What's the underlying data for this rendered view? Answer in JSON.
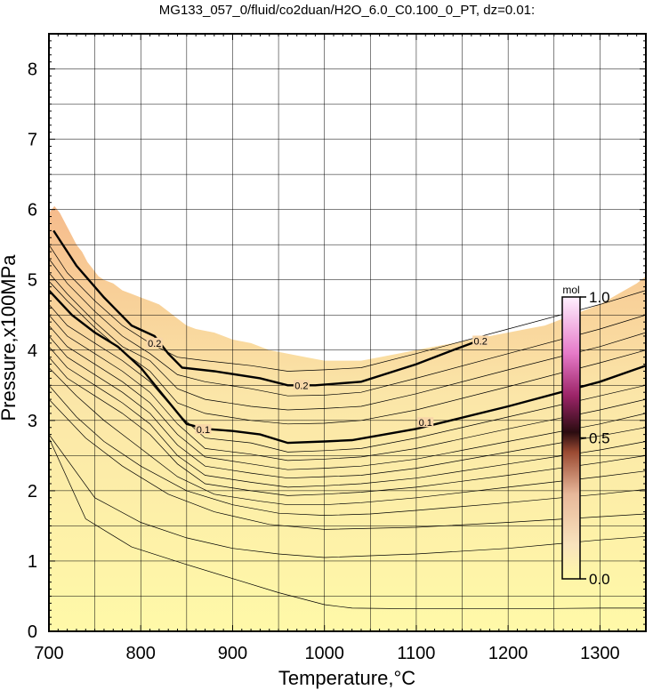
{
  "chart_data": {
    "type": "contour",
    "title": "MG133_057_0/fluid/co2duan/H2O_6.0_C0.100_0_PT, dz=0.01:",
    "xlabel": "Temperature,°C",
    "ylabel": "Pressure,x100MPa",
    "xlim": [
      700,
      1350
    ],
    "ylim": [
      0,
      8.5
    ],
    "xticks": [
      "700",
      "800",
      "900",
      "1000",
      "1100",
      "1200",
      "1300"
    ],
    "yticks": [
      "0",
      "1",
      "2",
      "3",
      "4",
      "5",
      "6",
      "7",
      "8"
    ],
    "grid": true,
    "colorbar": {
      "label": "mol",
      "ticks": [
        "0.0",
        "0.5",
        "1.0"
      ],
      "range": [
        0.0,
        1.0
      ],
      "colors": [
        "#fff9a8",
        "#f6d6a3",
        "#efb48e",
        "#b05a3c",
        "#301018",
        "#b0287a",
        "#ee88dd",
        "#fff0ff"
      ]
    },
    "field_colors": {
      "low": "#fff9a8",
      "high": "#f7c48f",
      "empty": "#ffffff"
    },
    "upper_boundary": {
      "x": [
        700,
        706,
        712,
        718,
        724,
        730,
        736,
        742,
        748,
        754,
        760,
        770,
        780,
        790,
        800,
        810,
        820,
        830,
        840,
        850,
        860,
        880,
        900,
        920,
        940,
        960,
        980,
        1000,
        1020,
        1040,
        1060,
        1080,
        1100,
        1120,
        1140,
        1160,
        1180,
        1200,
        1220,
        1240,
        1260,
        1280,
        1300,
        1320,
        1340,
        1350
      ],
      "y": [
        5.95,
        6.05,
        5.95,
        5.8,
        5.65,
        5.5,
        5.4,
        5.25,
        5.15,
        5.05,
        5.0,
        4.95,
        4.85,
        4.8,
        4.75,
        4.7,
        4.65,
        4.55,
        4.45,
        4.35,
        4.3,
        4.25,
        4.15,
        4.1,
        4.0,
        3.95,
        3.9,
        3.85,
        3.85,
        3.85,
        3.9,
        3.95,
        4.0,
        4.05,
        4.1,
        4.15,
        4.2,
        4.25,
        4.3,
        4.35,
        4.45,
        4.55,
        4.65,
        4.8,
        4.95,
        5.05
      ]
    },
    "contours": [
      {
        "level": "0.2",
        "bold": true,
        "label_at": [
          815,
          4.1
        ],
        "label_at2": [
          975,
          3.5
        ],
        "label_at3": [
          1170,
          4.13
        ],
        "x": [
          705,
          730,
          760,
          790,
          815,
          830,
          845,
          880,
          930,
          960,
          990,
          1040,
          1100,
          1140,
          1165
        ],
        "y": [
          5.7,
          5.2,
          4.75,
          4.35,
          4.2,
          3.95,
          3.75,
          3.7,
          3.6,
          3.5,
          3.5,
          3.55,
          3.8,
          4.0,
          4.12
        ]
      },
      {
        "level": "0.1",
        "bold": true,
        "label_at": [
          868,
          2.87
        ],
        "label_at2": [
          1110,
          2.97
        ],
        "x": [
          700,
          725,
          750,
          775,
          800,
          825,
          850,
          870,
          900,
          930,
          960,
          1000,
          1030,
          1100,
          1200,
          1300,
          1350
        ],
        "y": [
          4.85,
          4.5,
          4.25,
          4.05,
          3.75,
          3.35,
          2.95,
          2.88,
          2.85,
          2.8,
          2.68,
          2.7,
          2.72,
          2.88,
          3.2,
          3.55,
          3.78
        ]
      }
    ],
    "thin_contours": [
      {
        "x": [
          700,
          720,
          750,
          780,
          810,
          840,
          870,
          920,
          960,
          1000,
          1040,
          1100,
          1200,
          1300,
          1350
        ],
        "y": [
          5.5,
          5.1,
          4.7,
          4.35,
          4.1,
          3.9,
          3.85,
          3.78,
          3.7,
          3.72,
          3.75,
          3.95,
          4.3,
          4.65,
          4.85
        ]
      },
      {
        "x": [
          700,
          720,
          750,
          780,
          810,
          840,
          870,
          920,
          960,
          1000,
          1040,
          1100,
          1200,
          1300,
          1350
        ],
        "y": [
          5.3,
          4.95,
          4.55,
          4.2,
          3.95,
          3.65,
          3.55,
          3.45,
          3.35,
          3.36,
          3.4,
          3.6,
          3.95,
          4.3,
          4.5
        ]
      },
      {
        "x": [
          700,
          720,
          750,
          780,
          810,
          840,
          870,
          920,
          960,
          1000,
          1040,
          1100,
          1200,
          1300,
          1350
        ],
        "y": [
          5.1,
          4.8,
          4.4,
          4.05,
          3.85,
          3.45,
          3.3,
          3.2,
          3.15,
          3.17,
          3.2,
          3.38,
          3.72,
          4.05,
          4.25
        ]
      },
      {
        "x": [
          700,
          720,
          750,
          780,
          810,
          840,
          870,
          920,
          960,
          1000,
          1040,
          1100,
          1200,
          1300,
          1350
        ],
        "y": [
          4.98,
          4.7,
          4.32,
          3.98,
          3.7,
          3.25,
          3.1,
          3.0,
          2.95,
          2.96,
          3.0,
          3.15,
          3.48,
          3.82,
          4.0
        ]
      },
      {
        "x": [
          700,
          720,
          750,
          780,
          810,
          840,
          870,
          920,
          960,
          1000,
          1040,
          1100,
          1200,
          1300,
          1350
        ],
        "y": [
          4.65,
          4.35,
          4.1,
          3.85,
          3.55,
          3.1,
          2.75,
          2.68,
          2.55,
          2.57,
          2.6,
          2.75,
          3.05,
          3.35,
          3.5
        ]
      },
      {
        "x": [
          700,
          720,
          750,
          780,
          810,
          840,
          870,
          920,
          960,
          1000,
          1040,
          1100,
          1200,
          1300,
          1350
        ],
        "y": [
          4.5,
          4.2,
          3.95,
          3.7,
          3.4,
          2.95,
          2.6,
          2.52,
          2.43,
          2.45,
          2.48,
          2.6,
          2.88,
          3.15,
          3.3
        ]
      },
      {
        "x": [
          700,
          720,
          750,
          780,
          810,
          840,
          870,
          920,
          960,
          1000,
          1040,
          1100,
          1200,
          1300,
          1350
        ],
        "y": [
          4.35,
          4.05,
          3.8,
          3.55,
          3.25,
          2.8,
          2.48,
          2.38,
          2.3,
          2.32,
          2.35,
          2.45,
          2.7,
          2.95,
          3.1
        ]
      },
      {
        "x": [
          700,
          720,
          750,
          780,
          810,
          840,
          870,
          920,
          960,
          1000,
          1040,
          1100,
          1200,
          1300,
          1350
        ],
        "y": [
          4.2,
          3.9,
          3.65,
          3.4,
          3.1,
          2.65,
          2.35,
          2.25,
          2.18,
          2.2,
          2.22,
          2.32,
          2.55,
          2.78,
          2.9
        ]
      },
      {
        "x": [
          700,
          720,
          750,
          780,
          810,
          840,
          870,
          920,
          960,
          1000,
          1040,
          1100,
          1200,
          1300,
          1350
        ],
        "y": [
          4.05,
          3.75,
          3.5,
          3.25,
          2.95,
          2.5,
          2.22,
          2.12,
          2.05,
          2.07,
          2.1,
          2.18,
          2.38,
          2.58,
          2.7
        ]
      },
      {
        "x": [
          700,
          720,
          750,
          780,
          810,
          840,
          870,
          920,
          960,
          1000,
          1040,
          1100,
          1200,
          1300,
          1350
        ],
        "y": [
          3.9,
          3.6,
          3.35,
          3.1,
          2.8,
          2.38,
          2.1,
          2.0,
          1.93,
          1.95,
          1.98,
          2.05,
          2.22,
          2.4,
          2.5
        ]
      },
      {
        "x": [
          700,
          730,
          760,
          800,
          840,
          880,
          930,
          960,
          1000,
          1040,
          1100,
          1200,
          1300,
          1350
        ],
        "y": [
          3.75,
          3.35,
          3.0,
          2.6,
          2.2,
          1.95,
          1.85,
          1.8,
          1.8,
          1.83,
          1.9,
          2.05,
          2.2,
          2.28
        ]
      },
      {
        "x": [
          700,
          730,
          760,
          800,
          850,
          900,
          950,
          1000,
          1050,
          1100,
          1200,
          1300,
          1350
        ],
        "y": [
          3.5,
          3.05,
          2.7,
          2.35,
          2.0,
          1.8,
          1.68,
          1.65,
          1.67,
          1.72,
          1.83,
          1.95,
          2.02
        ]
      },
      {
        "x": [
          700,
          740,
          780,
          830,
          880,
          940,
          1000,
          1100,
          1200,
          1300,
          1350
        ],
        "y": [
          3.3,
          2.75,
          2.35,
          1.95,
          1.7,
          1.52,
          1.45,
          1.48,
          1.55,
          1.63,
          1.67
        ]
      },
      {
        "x": [
          700,
          750,
          800,
          850,
          900,
          950,
          1000,
          1100,
          1200,
          1300,
          1350
        ],
        "y": [
          2.8,
          1.9,
          1.55,
          1.33,
          1.18,
          1.1,
          1.05,
          1.1,
          1.18,
          1.3,
          1.35
        ]
      },
      {
        "x": [
          700,
          740,
          790,
          850,
          900,
          950,
          1000,
          1030,
          1100,
          1200,
          1300,
          1350
        ],
        "y": [
          2.75,
          1.6,
          1.2,
          0.95,
          0.75,
          0.55,
          0.38,
          0.33,
          0.32,
          0.32,
          0.33,
          0.33
        ]
      }
    ]
  }
}
